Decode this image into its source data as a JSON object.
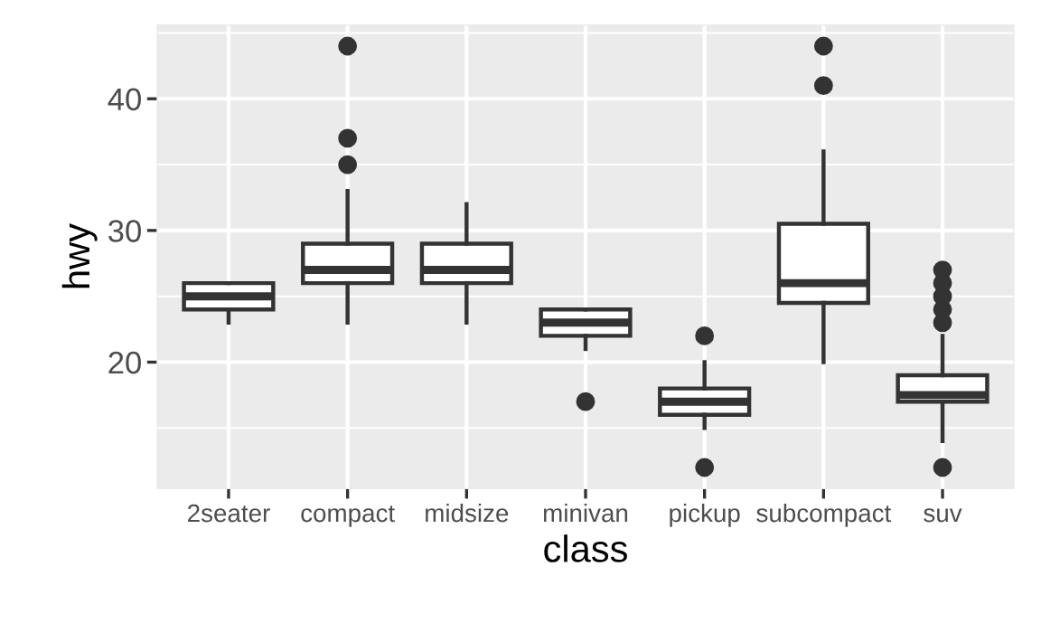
{
  "chart_data": {
    "type": "box",
    "xlabel": "class",
    "ylabel": "hwy",
    "categories": [
      "2seater",
      "compact",
      "midsize",
      "minivan",
      "pickup",
      "subcompact",
      "suv"
    ],
    "boxes": [
      {
        "low": 23,
        "q1": 24,
        "median": 25,
        "q3": 26,
        "high": 26
      },
      {
        "low": 23,
        "q1": 26,
        "median": 27,
        "q3": 29,
        "high": 33,
        "outliers": [
          35,
          37,
          44
        ]
      },
      {
        "low": 23,
        "q1": 26,
        "median": 27,
        "q3": 29,
        "high": 32
      },
      {
        "low": 21,
        "q1": 22,
        "median": 23,
        "q3": 24,
        "high": 24,
        "outliers": [
          17
        ]
      },
      {
        "low": 15,
        "q1": 16,
        "median": 17,
        "q3": 18,
        "high": 20,
        "outliers": [
          12,
          22
        ]
      },
      {
        "low": 20,
        "q1": 24.5,
        "median": 26,
        "q3": 30.5,
        "high": 36,
        "outliers": [
          41,
          44
        ]
      },
      {
        "low": 14,
        "q1": 17,
        "median": 17.5,
        "q3": 19,
        "high": 22,
        "outliers": [
          12,
          23,
          24,
          25,
          26,
          27
        ]
      }
    ],
    "color": "#333333",
    "ylim": [
      10.4,
      45.6
    ],
    "yticks": [
      20,
      30,
      40
    ],
    "grid": true
  }
}
